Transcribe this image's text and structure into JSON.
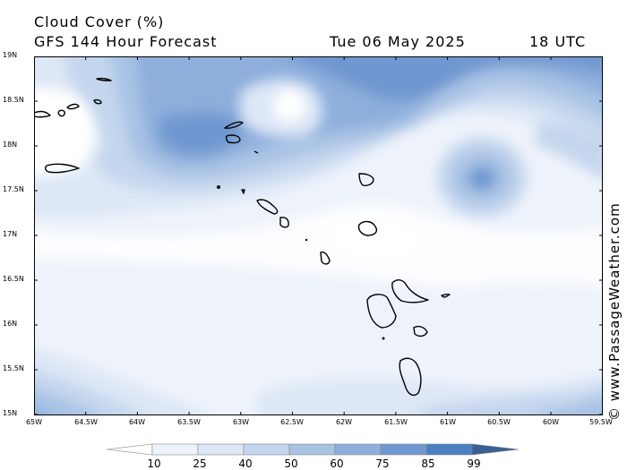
{
  "header": {
    "title": "Cloud Cover (%)",
    "model": "GFS 144 Hour Forecast",
    "date": "Tue 06 May 2025",
    "time": "18 UTC"
  },
  "credit": "© www.PassageWeather.com",
  "map": {
    "lat_labels": [
      "19N",
      "18.5N",
      "18N",
      "17.5N",
      "17N",
      "16.5N",
      "16N",
      "15.5N",
      "15N"
    ],
    "lon_labels": [
      "65W",
      "64.5W",
      "64W",
      "63.5W",
      "63W",
      "62.5W",
      "62W",
      "61.5W",
      "61W",
      "60.5W",
      "60W",
      "59.5W"
    ]
  },
  "colorbar": {
    "labels": [
      "10",
      "25",
      "40",
      "50",
      "60",
      "75",
      "85",
      "99"
    ],
    "colors": [
      "#ffffff",
      "#eef3fb",
      "#dde7f6",
      "#c4d6ee",
      "#a9c3e5",
      "#8eafdc",
      "#6f98d0",
      "#4a7fc2",
      "#3a5f96"
    ]
  }
}
